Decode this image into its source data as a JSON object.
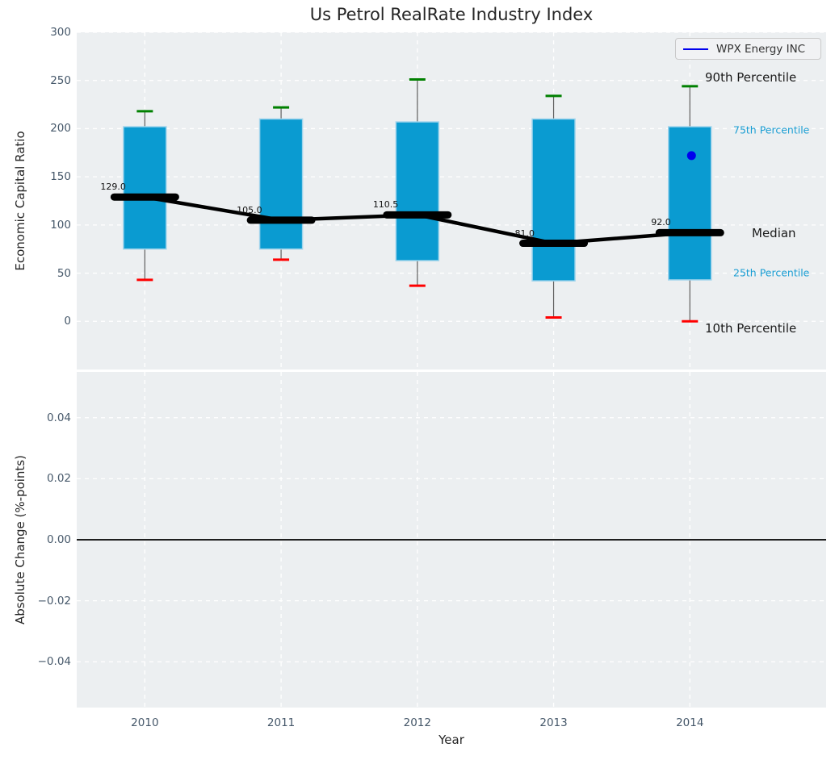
{
  "title": "Us Petrol RealRate Industry Index",
  "legend": {
    "label": "WPX Energy INC"
  },
  "annotations": {
    "p90": "90th Percentile",
    "p75": "75th Percentile",
    "median": "Median",
    "p25": "25th Percentile",
    "p10": "10th Percentile"
  },
  "colors": {
    "plot_bg": "#ECEFF1",
    "grid": "#FFFFFF",
    "box_fill": "#0A9BD1",
    "box_edge": "#9FD4EC",
    "whisker": "#5E5E5E",
    "cap_top": "#008000",
    "cap_bottom": "#FF0000",
    "median_line": "#000000",
    "company": "#0000EE",
    "zero_line": "#000000",
    "percentile_label": "#1C9FD4",
    "tick_label": "#46586A"
  },
  "chart_data": {
    "type": "box",
    "title": "Us Petrol RealRate Industry Index",
    "xlabel": "Year",
    "categories": [
      "2010",
      "2011",
      "2012",
      "2013",
      "2014"
    ],
    "series": [
      {
        "name": "90th Percentile",
        "values": [
          218,
          222,
          251,
          234,
          244
        ]
      },
      {
        "name": "75th Percentile",
        "values": [
          202,
          210,
          207,
          210,
          202
        ]
      },
      {
        "name": "Median",
        "values": [
          129.0,
          105.0,
          110.5,
          81.0,
          92.0
        ]
      },
      {
        "name": "25th Percentile",
        "values": [
          75,
          75,
          63,
          42,
          43
        ]
      },
      {
        "name": "10th Percentile",
        "values": [
          43,
          64,
          37,
          4,
          0
        ]
      },
      {
        "name": "WPX Energy INC",
        "values": [
          null,
          null,
          null,
          null,
          172
        ]
      }
    ],
    "median_labels": [
      "129.0",
      "105.0",
      "110.5",
      "81.0",
      "92.0"
    ],
    "top_axis": {
      "ylabel": "Economic Capital Ratio",
      "ylim": [
        -50,
        300
      ],
      "yticks": [
        0,
        50,
        100,
        150,
        200,
        250,
        300
      ],
      "ytick_labels": [
        "0",
        "50",
        "100",
        "150",
        "200",
        "250",
        "300"
      ]
    },
    "bottom_axis": {
      "ylabel": "Absolute Change (%-points)",
      "ylim": [
        -0.055,
        0.055
      ],
      "yticks": [
        0.04,
        0.02,
        0,
        -0.02,
        -0.04
      ],
      "ytick_labels": [
        "0.04",
        "0.02",
        "0.00",
        "−0.02",
        "−0.04"
      ],
      "zero_line": 0.0
    },
    "legend_position": "upper right",
    "grid": "white dashed on light gray background"
  }
}
